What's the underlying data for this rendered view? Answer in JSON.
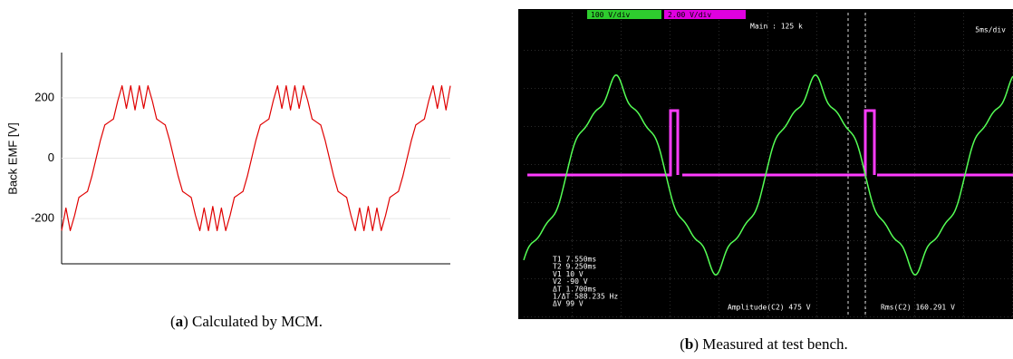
{
  "chart_data": {
    "type": "line",
    "y_label": "Back EMF [V]",
    "color": "#e00000",
    "ylim": [
      -350,
      350
    ],
    "yticks": [
      -200,
      0,
      200
    ],
    "grid": true,
    "values": [
      -240,
      -165,
      -240,
      -190,
      -130,
      -120,
      -110,
      -60,
      0,
      60,
      110,
      120,
      130,
      190,
      240,
      165,
      240,
      160,
      240,
      165,
      240,
      190,
      130,
      120,
      110,
      60,
      0,
      -60,
      -110,
      -120,
      -130,
      -190,
      -240,
      -165,
      -240,
      -160,
      -240,
      -165,
      -240,
      -190,
      -130,
      -120,
      -110,
      -60,
      0,
      60,
      110,
      120,
      130,
      190,
      240,
      165,
      240,
      160,
      240,
      165,
      240,
      190,
      130,
      120,
      110,
      60,
      0,
      -60,
      -110,
      -120,
      -130,
      -190,
      -240,
      -165,
      -240,
      -160,
      -240,
      -165,
      -240,
      -190,
      -130,
      -120,
      -110,
      -60,
      0,
      60,
      110,
      120,
      130,
      190,
      240,
      165,
      240,
      160,
      240
    ]
  },
  "caption_a": {
    "open": "(",
    "label": "a",
    "rest": ") Calculated by MCM."
  },
  "caption_b": {
    "open": "(",
    "label": "b",
    "rest": ") Measured at test bench."
  },
  "scope": {
    "ch1": "100 V/div",
    "ch2": "2.00 V/div",
    "main": "Main : 125 k",
    "timebase": "5ms/div",
    "readouts": [
      "T1  7.550ms",
      "T2  9.250ms",
      "V1  10 V",
      "V2  -90 V",
      "ΔT  1.700ms",
      "1/ΔT  588.235 Hz",
      "ΔV  99 V"
    ],
    "amplitude": "Amplitude(C2)  475 V",
    "rms": "Rms(C2)  160.291 V"
  }
}
